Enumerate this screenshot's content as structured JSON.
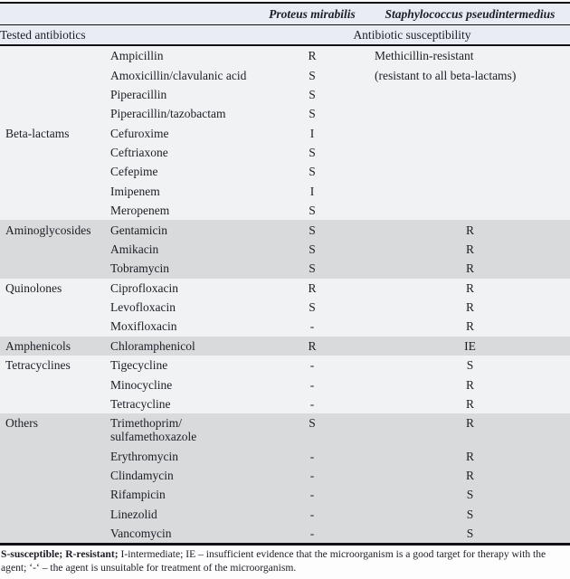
{
  "table": {
    "organisms": [
      "Proteus mirabilis",
      "Staphylococcus pseudintermedius"
    ],
    "row_header_label": "Tested antibiotics",
    "susceptibility_label": "Antibiotic susceptibility",
    "groups": [
      {
        "name": "Beta-lactams",
        "shade": "light",
        "label_valign": "middle",
        "rows": [
          {
            "antibiotic": "Ampicillin",
            "proteus": "R",
            "staph": "Methicillin-resistant",
            "staph_long": true
          },
          {
            "antibiotic": "Amoxicillin/clavulanic acid",
            "proteus": "S",
            "staph": "(resistant to all beta-lactams)",
            "staph_long": true
          },
          {
            "antibiotic": "Piperacillin",
            "proteus": "S",
            "staph": ""
          },
          {
            "antibiotic": "Piperacillin/tazobactam",
            "proteus": "S",
            "staph": ""
          },
          {
            "antibiotic": "Cefuroxime",
            "proteus": "I",
            "staph": ""
          },
          {
            "antibiotic": "Ceftriaxone",
            "proteus": "S",
            "staph": ""
          },
          {
            "antibiotic": "Cefepime",
            "proteus": "S",
            "staph": ""
          },
          {
            "antibiotic": "Imipenem",
            "proteus": "I",
            "staph": ""
          },
          {
            "antibiotic": "Meropenem",
            "proteus": "S",
            "staph": ""
          }
        ]
      },
      {
        "name": "Aminoglycosides",
        "shade": "gray",
        "label_valign": "top",
        "rows": [
          {
            "antibiotic": "Gentamicin",
            "proteus": "S",
            "staph": "R"
          },
          {
            "antibiotic": "Amikacin",
            "proteus": "S",
            "staph": "R"
          },
          {
            "antibiotic": "Tobramycin",
            "proteus": "S",
            "staph": "R"
          }
        ]
      },
      {
        "name": "Quinolones",
        "shade": "light",
        "label_valign": "top",
        "rows": [
          {
            "antibiotic": "Ciprofloxacin",
            "proteus": "R",
            "staph": "R"
          },
          {
            "antibiotic": "Levofloxacin",
            "proteus": "S",
            "staph": "R"
          },
          {
            "antibiotic": "Moxifloxacin",
            "proteus": "-",
            "staph": "R"
          }
        ]
      },
      {
        "name": "Amphenicols",
        "shade": "gray",
        "label_valign": "top",
        "rows": [
          {
            "antibiotic": "Chloramphenicol",
            "proteus": "R",
            "staph": "IE"
          }
        ]
      },
      {
        "name": "Tetracyclines",
        "shade": "light",
        "label_valign": "top",
        "rows": [
          {
            "antibiotic": "Tigecycline",
            "proteus": "-",
            "staph": "S"
          },
          {
            "antibiotic": "Minocycline",
            "proteus": "-",
            "staph": "R"
          },
          {
            "antibiotic": "Tetracycline",
            "proteus": "-",
            "staph": "R"
          }
        ]
      },
      {
        "name": "Others",
        "shade": "gray",
        "label_valign": "top",
        "rows": [
          {
            "antibiotic": "Trimethoprim/\nsulfamethoxazole",
            "proteus": "S",
            "staph": "R"
          },
          {
            "antibiotic": "Erythromycin",
            "proteus": "-",
            "staph": "R"
          },
          {
            "antibiotic": "Clindamycin",
            "proteus": "-",
            "staph": "R"
          },
          {
            "antibiotic": "Rifampicin",
            "proteus": "-",
            "staph": "S"
          },
          {
            "antibiotic": "Linezolid",
            "proteus": "-",
            "staph": "S"
          },
          {
            "antibiotic": "Vancomycin",
            "proteus": "-",
            "staph": "S"
          }
        ]
      }
    ]
  },
  "footnote": {
    "segments": [
      {
        "text": "S-susceptible; ",
        "bold": true
      },
      {
        "text": "R-resistant; ",
        "bold": true
      },
      {
        "text": "I-intermediate; IE – insufficient evidence that the microorganism is a good target for therapy with the agent; ‘-‘ – the agent is unsuitable for treatment of the microorganism.",
        "bold": false
      }
    ]
  },
  "colors": {
    "band_light": "#f1f2f4",
    "band_gray": "#d9dadc",
    "header_band": "#e9edf3",
    "rule": "#0f0f16"
  }
}
